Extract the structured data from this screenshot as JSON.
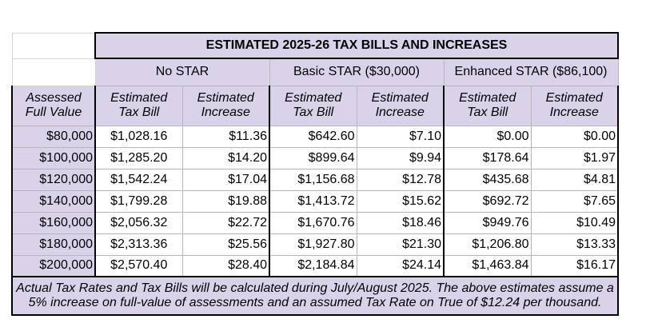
{
  "table": {
    "title": "ESTIMATED 2025-26 TAX BILLS AND INCREASES",
    "groups": [
      "No STAR",
      "Basic STAR ($30,000)",
      "Enhanced STAR ($86,100)"
    ],
    "col_headers": {
      "assessed": [
        "Assessed",
        "Full Value"
      ],
      "bill": [
        "Estimated",
        "Tax Bill"
      ],
      "increase": [
        "Estimated",
        "Increase"
      ]
    },
    "rows": [
      [
        "$80,000",
        "$1,028.16",
        "$11.36",
        "$642.60",
        "$7.10",
        "$0.00",
        "$0.00"
      ],
      [
        "$100,000",
        "$1,285.20",
        "$14.20",
        "$899.64",
        "$9.94",
        "$178.64",
        "$1.97"
      ],
      [
        "$120,000",
        "$1,542.24",
        "$17.04",
        "$1,156.68",
        "$12.78",
        "$435.68",
        "$4.81"
      ],
      [
        "$140,000",
        "$1,799.28",
        "$19.88",
        "$1,413.72",
        "$15.62",
        "$692.72",
        "$7.65"
      ],
      [
        "$160,000",
        "$2,056.32",
        "$22.72",
        "$1,670.76",
        "$18.46",
        "$949.76",
        "$10.49"
      ],
      [
        "$180,000",
        "$2,313.36",
        "$25.56",
        "$1,927.80",
        "$21.30",
        "$1,206.80",
        "$13.33"
      ],
      [
        "$200,000",
        "$2,570.40",
        "$28.40",
        "$2,184.84",
        "$24.14",
        "$1,463.84",
        "$16.17"
      ]
    ],
    "note": "Actual Tax Rates and Tax Bills will be calculated during July/August 2025. The above estimates assume a 5% increase on full-value of assessments and an assumed Tax Rate on True of $12.24 per thousand."
  },
  "colors": {
    "header_bg": "#d9d2e9",
    "border": "#000000"
  }
}
